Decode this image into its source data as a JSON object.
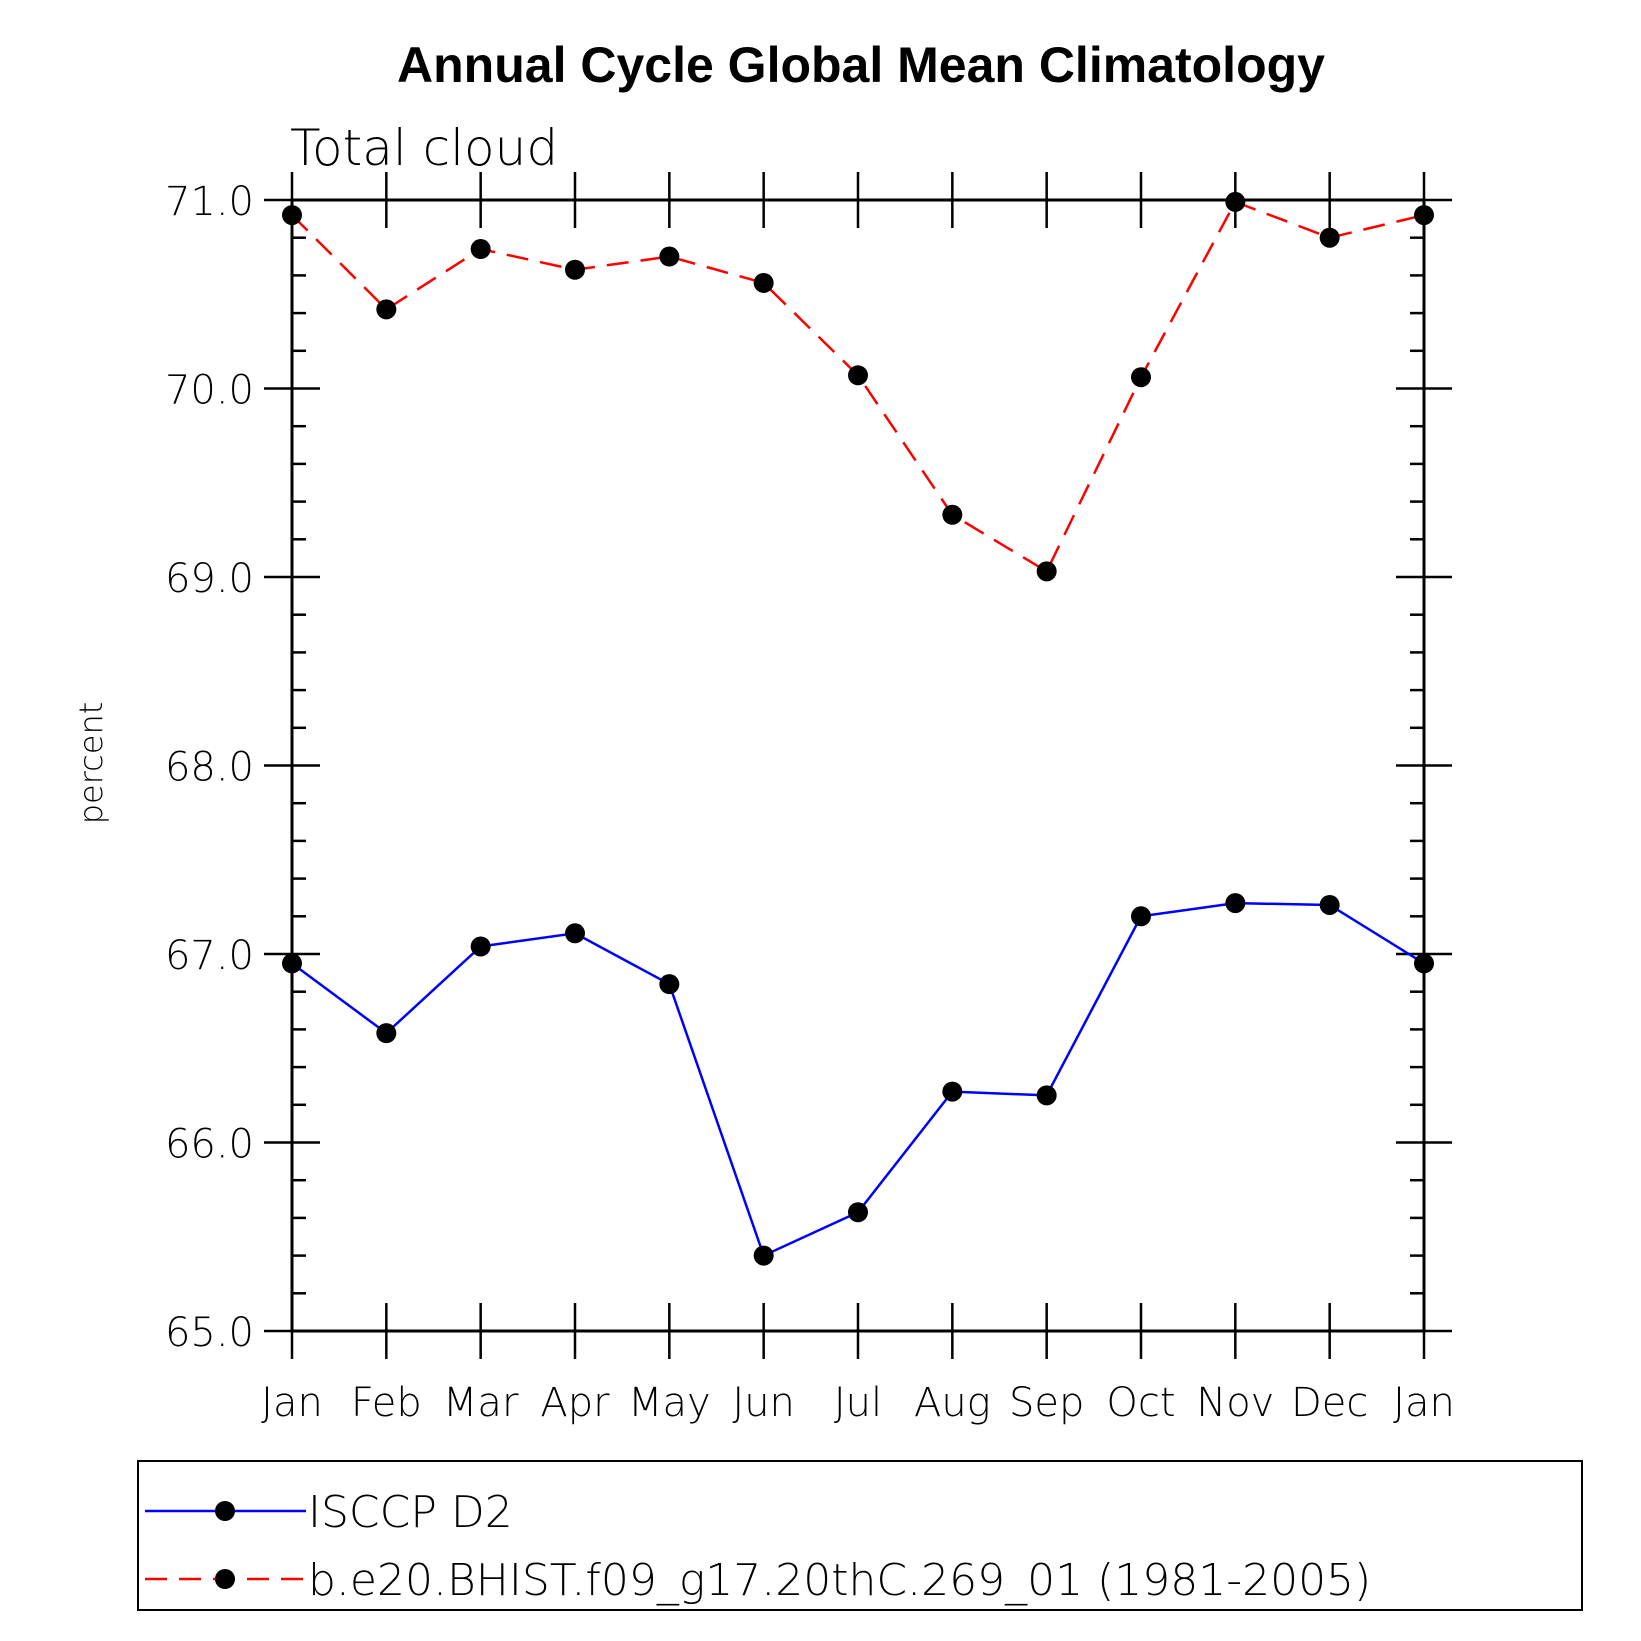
{
  "chart_data": {
    "type": "line",
    "title": "Annual Cycle Global Mean Climatology",
    "subtitle": "Total cloud",
    "xlabel": "",
    "ylabel": "percent",
    "categories": [
      "Jan",
      "Feb",
      "Mar",
      "Apr",
      "May",
      "Jun",
      "Jul",
      "Aug",
      "Sep",
      "Oct",
      "Nov",
      "Dec",
      "Jan"
    ],
    "ylim": [
      65.0,
      71.0
    ],
    "yticks": [
      "65.0",
      "66.0",
      "67.0",
      "68.0",
      "69.0",
      "70.0",
      "71.0"
    ],
    "grid": false,
    "legend_position": "bottom",
    "series": [
      {
        "name": "ISCCP D2",
        "color": "#0000ff",
        "line_style": "solid",
        "marker": "filled-circle",
        "values": [
          66.95,
          66.58,
          67.04,
          67.11,
          66.84,
          65.4,
          65.63,
          66.27,
          66.25,
          67.2,
          67.27,
          67.26,
          66.95
        ]
      },
      {
        "name": "b.e20.BHIST.f09_g17.20thC.269_01 (1981-2005)",
        "color": "#ff0000",
        "line_style": "dashed",
        "marker": "filled-circle",
        "values": [
          70.92,
          70.42,
          70.74,
          70.63,
          70.7,
          70.56,
          70.07,
          69.33,
          69.03,
          70.06,
          70.99,
          70.8,
          70.92
        ]
      }
    ]
  }
}
